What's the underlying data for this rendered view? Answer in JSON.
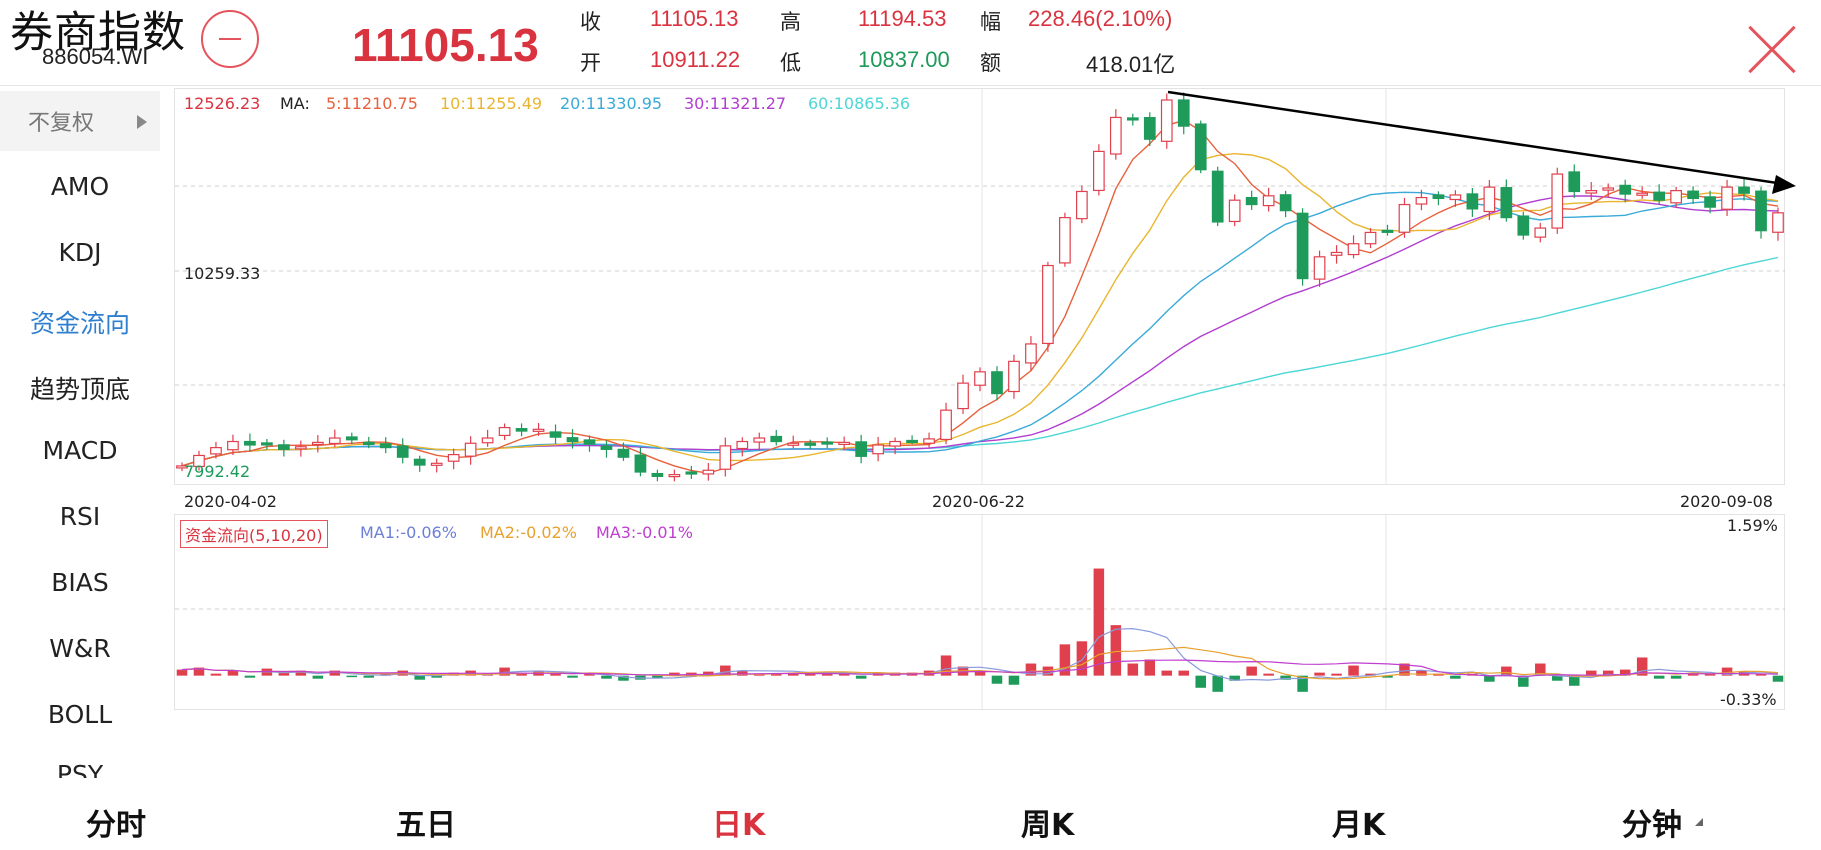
{
  "header": {
    "index_name": "券商指数",
    "index_code": "886054.WI",
    "last_price": "11105.13",
    "close_label": "收",
    "close_value": "11105.13",
    "high_label": "高",
    "high_value": "11194.53",
    "change_label": "幅",
    "change_value": "228.46(2.10%)",
    "open_label": "开",
    "open_value": "10911.22",
    "low_label": "低",
    "low_value": "10837.00",
    "amount_label": "额",
    "amount_value": "418.01亿",
    "remove_icon": "minus-circle-icon",
    "close_icon": "close-x-icon"
  },
  "sidebar": {
    "adjust_label": "不复权",
    "items": [
      "AMO",
      "KDJ",
      "资金流向",
      "趋势顶底",
      "MACD",
      "RSI",
      "BIAS",
      "W&R",
      "BOLL",
      "PSY"
    ],
    "active_item": "资金流向"
  },
  "kline": {
    "max_label": "12526.23",
    "mid_label": "10259.33",
    "min_label": "7992.42",
    "ma_title": "MA:",
    "ma_values": [
      "5:11210.75",
      "10:11255.49",
      "20:11330.95",
      "30:11321.27",
      "60:10865.36"
    ],
    "dates": [
      "2020-04-02",
      "2020-06-22",
      "2020-09-08"
    ]
  },
  "funds": {
    "title": "资金流向(5,10,20)",
    "ma_values": [
      "MA1:-0.06%",
      "MA2:-0.02%",
      "MA3:-0.01%"
    ],
    "max_label": "1.59%",
    "min_label": "-0.33%"
  },
  "tabs": [
    "分时",
    "五日",
    "日K",
    "周K",
    "月K",
    "分钟"
  ],
  "active_tab": "日K",
  "colors": {
    "up": "#e0404d",
    "down": "#1e9a5a",
    "ma5": "#e8603c",
    "ma10": "#e9b52e",
    "ma20": "#3aaad8",
    "ma30": "#b13ed0",
    "ma60": "#4dd6d6",
    "trend_arrow": "#000000"
  },
  "chart_data": [
    {
      "type": "candlestick",
      "x_range": [
        "2020-04-02",
        "2020-09-08"
      ],
      "ylim": [
        7992.42,
        12526.23
      ],
      "closes": [
        8200,
        8320,
        8410,
        8480,
        8440,
        8460,
        8390,
        8420,
        8470,
        8520,
        8500,
        8460,
        8410,
        8300,
        8210,
        8230,
        8330,
        8460,
        8520,
        8640,
        8600,
        8620,
        8530,
        8480,
        8450,
        8390,
        8300,
        8130,
        8080,
        8100,
        8120,
        8150,
        8430,
        8480,
        8520,
        8480,
        8460,
        8450,
        8470,
        8470,
        8310,
        8440,
        8480,
        8490,
        8510,
        8840,
        9150,
        9280,
        9030,
        9400,
        9600,
        10500,
        11050,
        11350,
        11810,
        12200,
        12180,
        11950,
        12400,
        12100,
        11600,
        11000,
        11250,
        11200,
        11300,
        11130,
        10350,
        10600,
        10650,
        10750,
        10880,
        10900,
        11200,
        11280,
        11270,
        11310,
        11150,
        11400,
        11050,
        10850,
        10930,
        11550,
        11350,
        11360,
        11390,
        11320,
        11330,
        11250,
        11360,
        11270,
        11170,
        11400,
        11330,
        10900,
        11105
      ],
      "ma": {
        "ma5": 11210.75,
        "ma10": 11255.49,
        "ma20": 11330.95,
        "ma30": 11321.27,
        "ma60": 10865.36
      }
    },
    {
      "type": "bar",
      "series_label": "资金流向(5,10,20)",
      "ylim": [
        -0.33,
        1.59
      ],
      "values": [
        0.06,
        0.08,
        0.02,
        0.05,
        -0.02,
        0.07,
        0.03,
        0.05,
        -0.03,
        0.05,
        -0.01,
        -0.02,
        0.03,
        0.05,
        -0.04,
        -0.02,
        0.03,
        0.05,
        0.02,
        0.08,
        0.03,
        0.05,
        0.02,
        -0.02,
        0.02,
        -0.03,
        -0.05,
        -0.04,
        -0.02,
        0.03,
        0.03,
        0.04,
        0.1,
        0.05,
        0.02,
        0.02,
        0.03,
        0.03,
        0.03,
        0.02,
        -0.03,
        0.03,
        0.03,
        0.03,
        0.05,
        0.2,
        0.09,
        0.05,
        -0.08,
        -0.09,
        0.12,
        0.09,
        0.31,
        0.34,
        1.06,
        0.5,
        0.12,
        0.16,
        0.05,
        0.05,
        -0.12,
        -0.16,
        -0.05,
        0.09,
        0.02,
        -0.04,
        -0.16,
        0.03,
        0.02,
        0.1,
        0.02,
        -0.02,
        0.12,
        0.05,
        0.02,
        -0.03,
        0.02,
        -0.06,
        0.09,
        -0.11,
        0.12,
        -0.05,
        -0.1,
        0.05,
        0.05,
        0.06,
        0.18,
        -0.03,
        -0.03,
        0.02,
        0.02,
        0.08,
        0.04,
        0.02,
        -0.06
      ]
    }
  ]
}
